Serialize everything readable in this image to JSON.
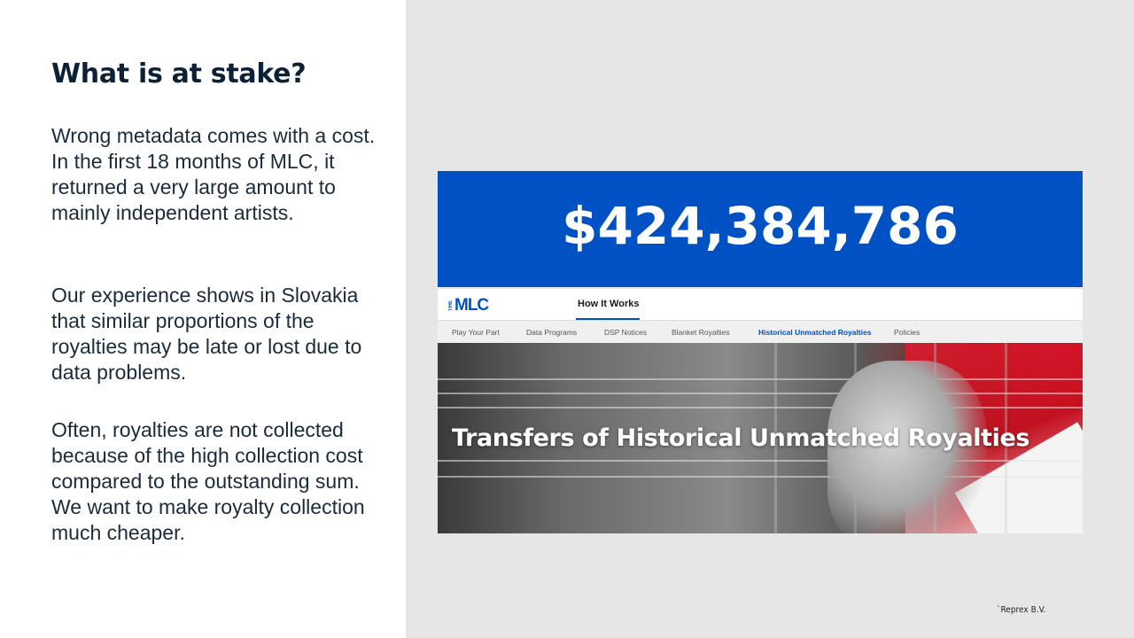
{
  "slide": {
    "title": "What is at stake?",
    "paragraphs": [
      "Wrong metadata comes with a cost. In the first 18 months of MLC, it returned a very large amount to mainly independent artists.",
      "Our experience shows in Slovakia that similar proportions of the royalties may be late or lost due to data problems.",
      "Often, royalties are not collected because of the high collection cost compared to the outstanding sum. We want to make royalty collection much cheaper."
    ],
    "footer_credit": "`Reprex B.V."
  },
  "screenshot": {
    "amount": "$424,384,786",
    "logo_the": "THE",
    "logo_mlc": "MLC",
    "nav_active": "How It Works",
    "subnav": [
      "Play Your Part",
      "Data Programs",
      "DSP Notices",
      "Blanket Royalties",
      "Historical Unmatched Royalties",
      "Policies"
    ],
    "hero_title": "Transfers of Historical Unmatched Royalties"
  },
  "colors": {
    "title": "#0d2136",
    "banner_blue": "#0051c3",
    "right_panel_bg": "#e6e6e6",
    "accent_red": "#d8102a"
  }
}
